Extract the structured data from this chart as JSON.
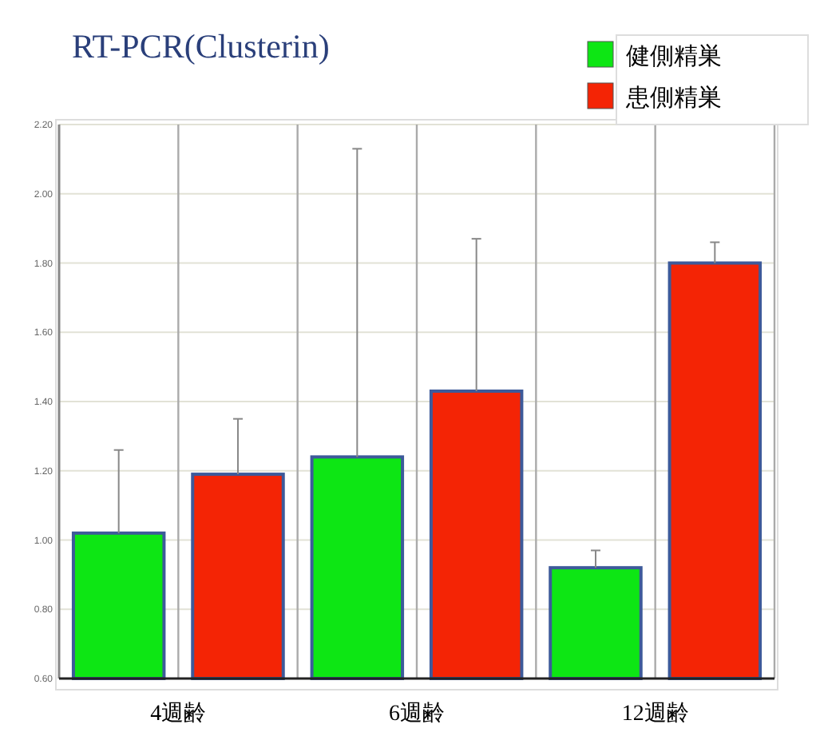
{
  "chart_data": {
    "type": "bar",
    "title": "RT-PCR(Clusterin)",
    "categories": [
      "4週齢",
      "6週齢",
      "12週齢"
    ],
    "series": [
      {
        "name": "健側精巣",
        "color": "#0de614",
        "values": [
          1.02,
          1.24,
          0.92
        ],
        "errors": [
          [
            1.02,
            1.26
          ],
          [
            1.24,
            2.13
          ],
          [
            0.92,
            0.97
          ]
        ]
      },
      {
        "name": "患側精巣",
        "color": "#f42405",
        "values": [
          1.19,
          1.43,
          1.8
        ],
        "errors": [
          [
            1.19,
            1.35
          ],
          [
            1.43,
            1.87
          ],
          [
            1.8,
            1.86
          ]
        ]
      }
    ],
    "ylim": [
      0.6,
      2.2
    ],
    "yticks": [
      {
        "value": 0.6,
        "label": "0.60"
      },
      {
        "value": 0.8,
        "label": "0.80"
      },
      {
        "value": 1.0,
        "label": "1.00"
      },
      {
        "value": 1.2,
        "label": "1.20"
      },
      {
        "value": 1.4,
        "label": "1.40"
      },
      {
        "value": 1.6,
        "label": "1.60"
      },
      {
        "value": 1.8,
        "label": "1.80"
      },
      {
        "value": 2.0,
        "label": "2.00"
      },
      {
        "value": 2.2,
        "label": "2.20"
      }
    ],
    "grid": true,
    "legend": "top right"
  }
}
